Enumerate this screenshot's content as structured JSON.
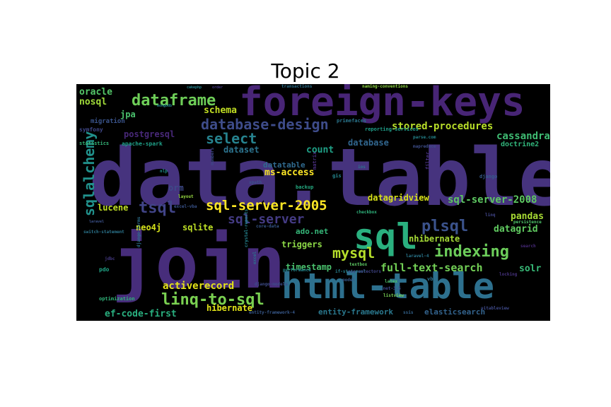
{
  "chart_data": {
    "type": "wordcloud",
    "title": "Topic 2",
    "words": [
      {
        "text": "data.table",
        "color": "#46337e"
      },
      {
        "text": "join",
        "color": "#472d7b"
      },
      {
        "text": "foreign-keys",
        "color": "#482576"
      },
      {
        "text": "html-table",
        "color": "#2d708e"
      },
      {
        "text": "sql",
        "color": "#2ab07f"
      },
      {
        "text": "sql-server-2005",
        "color": "#fde725"
      },
      {
        "text": "database-design",
        "color": "#3e4c8a"
      },
      {
        "text": "linq-to-sql",
        "color": "#7ad151"
      },
      {
        "text": "dataframe",
        "color": "#6ece58"
      },
      {
        "text": "sqlalchemy",
        "color": "#21918c"
      },
      {
        "text": "indexing",
        "color": "#6ccd5a"
      },
      {
        "text": "select",
        "color": "#26828e"
      },
      {
        "text": "sql-server",
        "color": "#443b84"
      },
      {
        "text": "tsql",
        "color": "#414487"
      },
      {
        "text": "plsql",
        "color": "#3b528b"
      },
      {
        "text": "mysql",
        "color": "#b5de2b"
      },
      {
        "text": "sql-server-2008",
        "color": "#5ec962"
      },
      {
        "text": "stored-procedures",
        "color": "#b8de29"
      },
      {
        "text": "full-text-search",
        "color": "#73d056"
      },
      {
        "text": "activerecord",
        "color": "#e5e419"
      },
      {
        "text": "cassandra",
        "color": "#3fbc73"
      },
      {
        "text": "oracle",
        "color": "#54c568"
      },
      {
        "text": "nosql",
        "color": "#a0da39"
      },
      {
        "text": "schema",
        "color": "#c2df23"
      },
      {
        "text": "postgresql",
        "color": "#482878"
      },
      {
        "text": "dataset",
        "color": "#2c738e"
      },
      {
        "text": "count",
        "color": "#1fa187"
      },
      {
        "text": "database",
        "color": "#31668e"
      },
      {
        "text": "datatable",
        "color": "#306a8e"
      },
      {
        "text": "ms-access",
        "color": "#fde725"
      },
      {
        "text": "datagridview",
        "color": "#d8e219"
      },
      {
        "text": "pandas",
        "color": "#a8db34"
      },
      {
        "text": "datagrid",
        "color": "#60ca60"
      },
      {
        "text": "nhibernate",
        "color": "#a5db36"
      },
      {
        "text": "triggers",
        "color": "#8bd646"
      },
      {
        "text": "timestamp",
        "color": "#4ac16d"
      },
      {
        "text": "solr",
        "color": "#38b977"
      },
      {
        "text": "hibernate",
        "color": "#e2e418"
      },
      {
        "text": "ef-code-first",
        "color": "#29af7f"
      },
      {
        "text": "entity-framework",
        "color": "#2a788e"
      },
      {
        "text": "elasticsearch",
        "color": "#33638d"
      },
      {
        "text": "jpa",
        "color": "#4ac16d"
      },
      {
        "text": "orm",
        "color": "#3e4a89"
      },
      {
        "text": "lucene",
        "color": "#c0df25"
      },
      {
        "text": "neo4j",
        "color": "#d5e21a"
      },
      {
        "text": "sqlite",
        "color": "#bddf26"
      },
      {
        "text": "doctrine2",
        "color": "#31b57b"
      },
      {
        "text": "ado.net",
        "color": "#35b779"
      },
      {
        "text": "migration",
        "color": "#3a548c"
      },
      {
        "text": "symfony",
        "color": "#3f4788"
      },
      {
        "text": "statistics",
        "color": "#35b779"
      },
      {
        "text": "apache-spark",
        "color": "#1fa088"
      },
      {
        "text": "primefaces",
        "color": "#2a768e"
      },
      {
        "text": "reporting-services",
        "color": "#1f9e89"
      },
      {
        "text": "parse.com",
        "color": "#24868e"
      },
      {
        "text": "mapreduce",
        "color": "#3d4e8a"
      },
      {
        "text": "transactions",
        "color": "#2c728e"
      },
      {
        "text": "naming-conventions",
        "color": "#8fd744"
      },
      {
        "text": "mongodb",
        "color": "#25848e"
      },
      {
        "text": "cakephp",
        "color": "#25848e"
      },
      {
        "text": "order",
        "color": "#453882"
      },
      {
        "text": "backup",
        "color": "#25ac82"
      },
      {
        "text": "xpath",
        "color": "#3b528b"
      },
      {
        "text": "gis",
        "color": "#25858e"
      },
      {
        "text": "ios",
        "color": "#2c738e"
      },
      {
        "text": "matrix",
        "color": "#472d7b"
      },
      {
        "text": "filter",
        "color": "#46307e"
      },
      {
        "text": "django",
        "color": "#375a8c"
      },
      {
        "text": "numbers",
        "color": "#3e4989"
      },
      {
        "text": "nlp",
        "color": "#21918c"
      },
      {
        "text": "layout",
        "color": "#95d840"
      },
      {
        "text": "excel-vba",
        "color": "#3a548c"
      },
      {
        "text": "core-data",
        "color": "#38588c"
      },
      {
        "text": "if-statement",
        "color": "#277f8e"
      },
      {
        "text": "switch-statement",
        "color": "#2b758e"
      },
      {
        "text": "laravel",
        "color": "#3b528b"
      },
      {
        "text": "linq",
        "color": "#404588"
      },
      {
        "text": "jdbc",
        "color": "#443983"
      },
      {
        "text": "django-forms",
        "color": "#2d708e"
      },
      {
        "text": "pdo",
        "color": "#20a486"
      },
      {
        "text": "optimization",
        "color": "#31b57b"
      },
      {
        "text": "crystal-reports",
        "color": "#25838e"
      },
      {
        "text": "excel",
        "color": "#2e6e8e"
      },
      {
        "text": "django-models",
        "color": "#3e4c8a"
      },
      {
        "text": "performance",
        "color": "#24878e"
      },
      {
        "text": "textbox",
        "color": "#5cc863"
      },
      {
        "text": "latex",
        "color": "#4fc46a"
      },
      {
        "text": "vba",
        "color": "#2e6f8e"
      },
      {
        "text": "listview",
        "color": "#77d153"
      },
      {
        "text": "search",
        "color": "#472a7a"
      },
      {
        "text": "persistence",
        "color": "#4fc46a"
      },
      {
        "text": "uitableview",
        "color": "#3e4989"
      },
      {
        "text": "ssis",
        "color": "#33638d"
      },
      {
        "text": "model",
        "color": "#375a8c"
      },
      {
        "text": "css-selectors",
        "color": "#404588"
      },
      {
        "text": "laravel-4",
        "color": "#2a788e"
      },
      {
        "text": ".net-3.5",
        "color": "#3f4889"
      },
      {
        "text": "locking",
        "color": "#46327e"
      },
      {
        "text": "checkbox",
        "color": "#2fb47c"
      },
      {
        "text": "entity-framework-4",
        "color": "#38598c"
      }
    ]
  }
}
